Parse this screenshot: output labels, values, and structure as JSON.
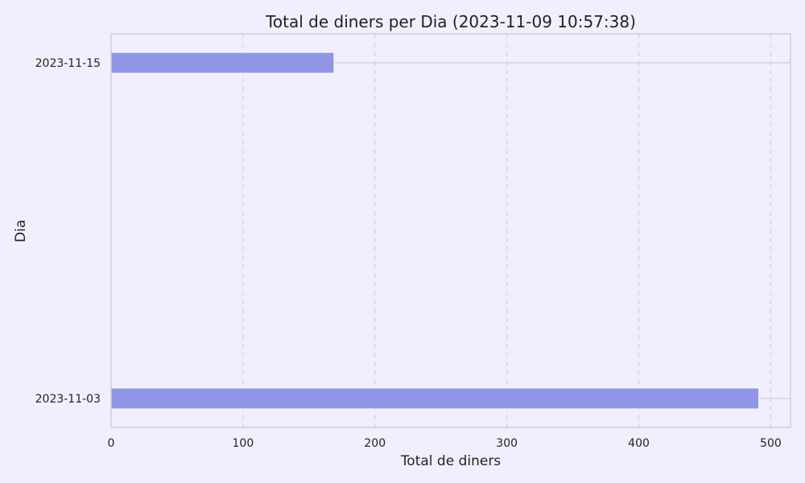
{
  "chart_data": {
    "type": "bar",
    "orientation": "horizontal",
    "title": "Total de diners per Dia (2023-11-09 10:57:38)",
    "xlabel": "Total de diners",
    "ylabel": "Dia",
    "categories": [
      "2023-11-03",
      "2023-11-15"
    ],
    "values": [
      491,
      169
    ],
    "xlim": [
      0,
      515
    ],
    "xticks": [
      0,
      100,
      200,
      300,
      400,
      500
    ],
    "grid": "vertical dashed",
    "colors": {
      "bar": "#9095e8",
      "background": "#f1effe",
      "axes_background": "#f1effe",
      "grid": "#d3d1e0",
      "spine": "#cfcdd8",
      "text": "#222222"
    }
  }
}
